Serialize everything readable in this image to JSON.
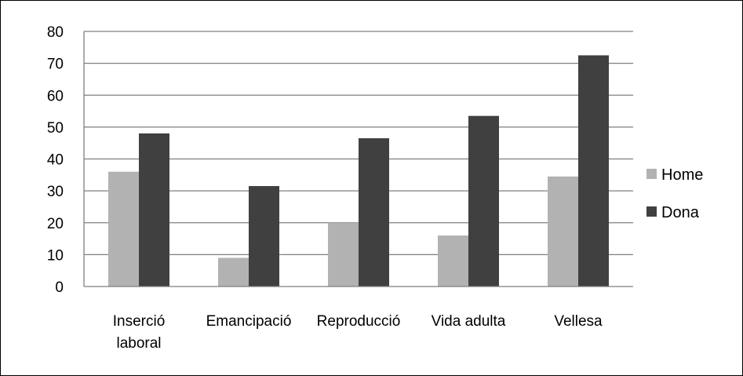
{
  "chart_data": {
    "type": "bar",
    "categories": [
      [
        "Inserció",
        "laboral"
      ],
      [
        "Emancipació"
      ],
      [
        "Reproducció"
      ],
      [
        "Vida adulta"
      ],
      [
        "Vellesa"
      ]
    ],
    "series": [
      {
        "name": "Home",
        "color": "#b2b2b2",
        "values": [
          36,
          9,
          20,
          16,
          34.5
        ]
      },
      {
        "name": "Dona",
        "color": "#404040",
        "values": [
          48,
          31.5,
          46.5,
          53.5,
          72.5
        ]
      }
    ],
    "ylim": [
      0,
      80
    ],
    "yticks": [
      0,
      10,
      20,
      30,
      40,
      50,
      60,
      70,
      80
    ],
    "grid": true,
    "legend": "right"
  }
}
